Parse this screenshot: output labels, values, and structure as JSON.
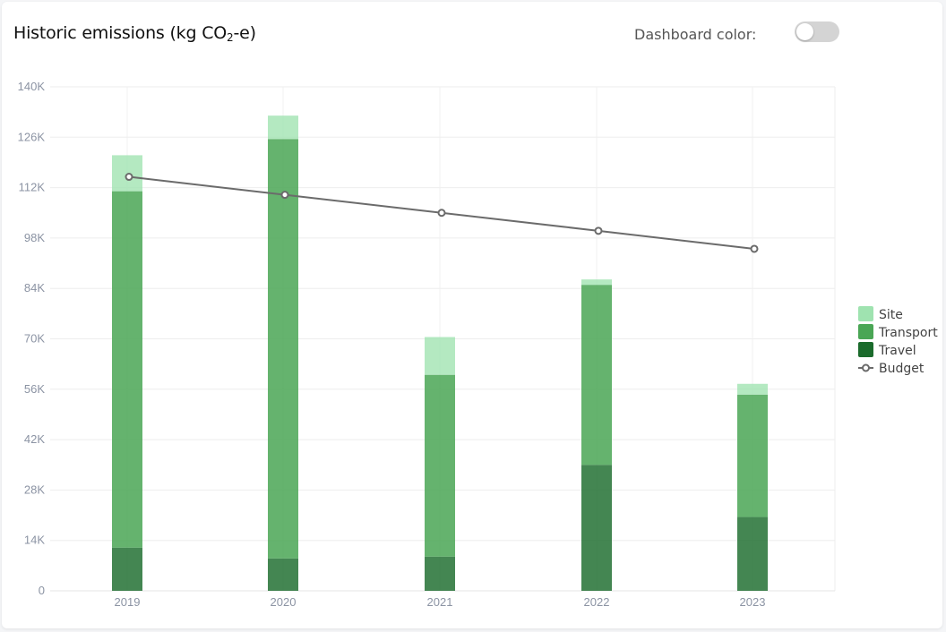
{
  "header": {
    "title_prefix": "Historic emissions (kg CO",
    "title_sub": "2",
    "title_suffix": "-e)",
    "dashboard_color_label": "Dashboard color:",
    "dashboard_color_on": false
  },
  "chart_data": {
    "type": "bar",
    "stacked": true,
    "categories": [
      "2019",
      "2020",
      "2021",
      "2022",
      "2023"
    ],
    "series": [
      {
        "name": "Travel",
        "values": [
          12000,
          9000,
          9500,
          35000,
          20500
        ],
        "color": "#1b6b2c"
      },
      {
        "name": "Transport",
        "values": [
          99000,
          116500,
          50500,
          50000,
          34000
        ],
        "color": "#4aa655"
      },
      {
        "name": "Site",
        "values": [
          10000,
          6500,
          10500,
          1500,
          3000
        ],
        "color": "#9fe3b0"
      }
    ],
    "line": {
      "name": "Budget",
      "values": [
        115000,
        110000,
        105000,
        100000,
        95000
      ],
      "color": "#6b6b6b"
    },
    "ylim": [
      0,
      140000
    ],
    "yticks": [
      "0",
      "14K",
      "28K",
      "42K",
      "56K",
      "70K",
      "84K",
      "98K",
      "112K",
      "126K",
      "140K"
    ],
    "ytick_values": [
      0,
      14000,
      28000,
      42000,
      56000,
      70000,
      84000,
      98000,
      112000,
      126000,
      140000
    ],
    "legend": [
      "Site",
      "Transport",
      "Travel",
      "Budget"
    ],
    "legend_position": "right",
    "grid": true,
    "title": "",
    "xlabel": "",
    "ylabel": ""
  }
}
